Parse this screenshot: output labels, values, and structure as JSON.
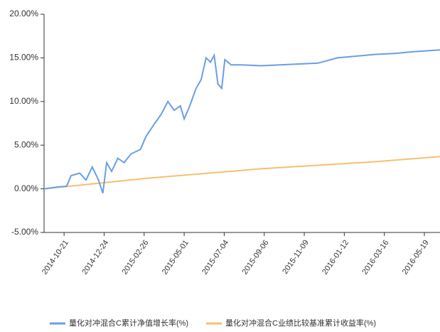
{
  "chart_data": {
    "type": "line",
    "series": [
      {
        "name": "量化对冲混合C累计净值增长率(%)",
        "color": "#6a9ee6",
        "x": [
          "2014-09-19",
          "2014-10-10",
          "2014-10-25",
          "2014-11-01",
          "2014-11-15",
          "2014-11-25",
          "2014-12-05",
          "2014-12-15",
          "2014-12-22",
          "2014-12-28",
          "2015-01-05",
          "2015-01-15",
          "2015-01-25",
          "2015-02-05",
          "2015-02-20",
          "2015-03-01",
          "2015-03-15",
          "2015-03-25",
          "2015-04-05",
          "2015-04-15",
          "2015-04-25",
          "2015-05-01",
          "2015-05-10",
          "2015-05-20",
          "2015-05-28",
          "2015-06-05",
          "2015-06-12",
          "2015-06-18",
          "2015-06-24",
          "2015-06-30",
          "2015-07-05",
          "2015-07-15",
          "2015-08-01",
          "2015-09-01",
          "2015-10-01",
          "2015-11-01",
          "2015-12-01",
          "2016-01-01",
          "2016-02-01",
          "2016-03-01",
          "2016-04-01",
          "2016-05-01",
          "2016-06-13"
        ],
        "values": [
          0,
          0.2,
          0.3,
          1.5,
          1.8,
          1.0,
          2.5,
          1.0,
          -0.5,
          3.0,
          2.0,
          3.5,
          3.0,
          4.0,
          4.5,
          6.0,
          7.5,
          8.5,
          10.0,
          9.0,
          9.5,
          8.0,
          9.5,
          11.5,
          12.5,
          15.0,
          14.5,
          15.3,
          12.0,
          11.5,
          14.8,
          14.2,
          14.2,
          14.1,
          14.2,
          14.3,
          14.4,
          15.0,
          15.2,
          15.4,
          15.5,
          15.7,
          15.9
        ]
      },
      {
        "name": "量化对冲混合C业绩比较基准累计收益率(%)",
        "color": "#f6c06e",
        "x": [
          "2014-09-19",
          "2015-03-01",
          "2015-09-01",
          "2016-03-01",
          "2016-06-13"
        ],
        "values": [
          0,
          1.2,
          2.3,
          3.1,
          3.7
        ]
      }
    ],
    "xlim": [
      "2014-09-19",
      "2016-06-13"
    ],
    "xticks": [
      "2014-10-21",
      "2014-12-24",
      "2015-02-26",
      "2015-05-01",
      "2015-07-04",
      "2015-09-06",
      "2015-11-09",
      "2016-01-12",
      "2016-03-16",
      "2016-05-19"
    ],
    "ylim": [
      -5,
      20
    ],
    "yticks": [
      {
        "value": -5,
        "label": "-5.00%"
      },
      {
        "value": 0,
        "label": "0.00%"
      },
      {
        "value": 5,
        "label": "5.00%"
      },
      {
        "value": 10,
        "label": "10.00%"
      },
      {
        "value": 15,
        "label": "15.00%"
      },
      {
        "value": 20,
        "label": "20.00%"
      }
    ],
    "legend": "bottom"
  }
}
